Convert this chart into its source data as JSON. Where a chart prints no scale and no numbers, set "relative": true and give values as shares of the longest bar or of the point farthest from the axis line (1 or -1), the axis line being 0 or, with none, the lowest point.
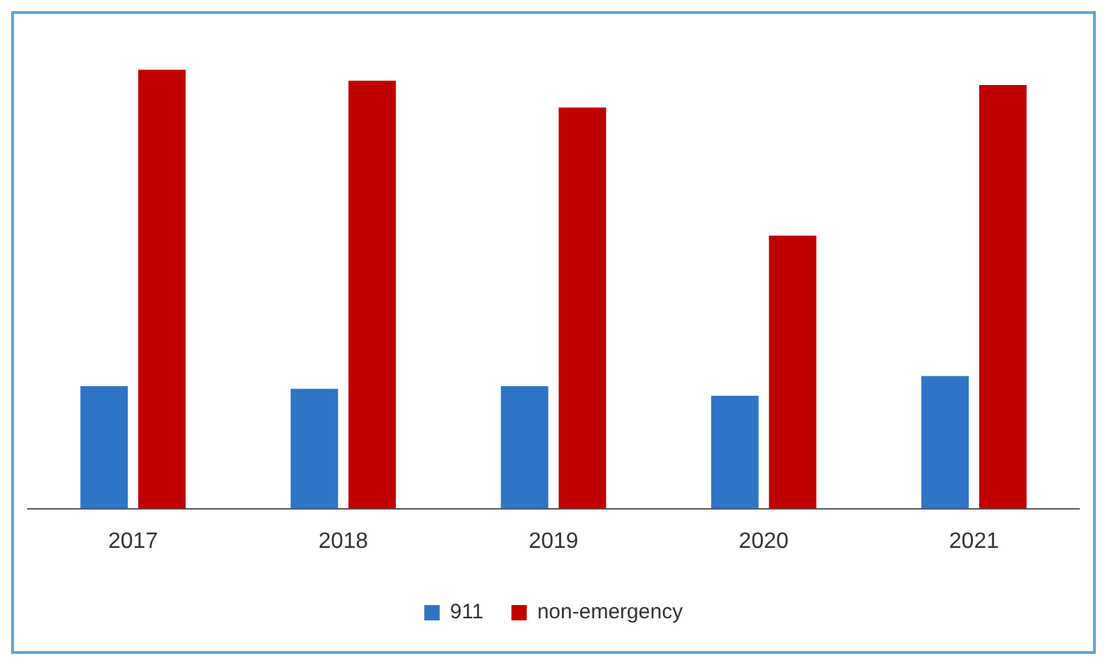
{
  "chart_data": {
    "type": "bar",
    "relative": true,
    "categories": [
      "2017",
      "2018",
      "2019",
      "2020",
      "2021"
    ],
    "series": [
      {
        "name": "911",
        "color": "#2e75c8",
        "values": [
          0.279,
          0.273,
          0.279,
          0.257,
          0.302
        ]
      },
      {
        "name": "non-emergency",
        "color": "#c00000",
        "values": [
          1,
          0.975,
          0.914,
          0.622,
          0.965
        ]
      }
    ],
    "grid": false,
    "legend": "bottom"
  }
}
